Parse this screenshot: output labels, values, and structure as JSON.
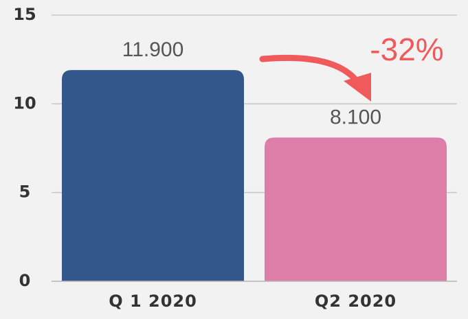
{
  "chart_data": {
    "type": "bar",
    "categories": [
      "Q 1 2020",
      "Q2 2020"
    ],
    "values": [
      11.9,
      8.1
    ],
    "value_labels": [
      "11.900",
      "8.100"
    ],
    "colors": [
      "#34578b",
      "#dc7ea8"
    ],
    "annotation": "-32%",
    "ylim": [
      0,
      15
    ],
    "yticks": [
      0,
      5,
      10,
      15
    ],
    "grid": true
  }
}
